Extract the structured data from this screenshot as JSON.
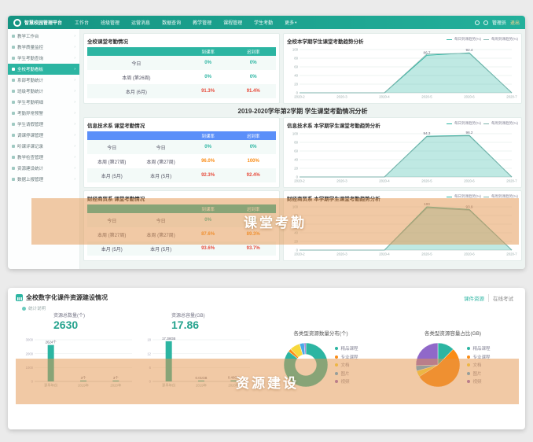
{
  "app": {
    "brand": "智慧校园管理平台",
    "nav": [
      {
        "label": "工作台"
      },
      {
        "label": "班级管理"
      },
      {
        "label": "运营消息"
      },
      {
        "label": "数据查询"
      },
      {
        "label": "教学管理"
      },
      {
        "label": "课程管理"
      },
      {
        "label": "学生考勤"
      },
      {
        "label": "更多",
        "dropdown": true
      }
    ],
    "user": {
      "name": "管理员",
      "logout": "退出"
    }
  },
  "sidebar": {
    "items": [
      {
        "label": "教学工作台",
        "active": false
      },
      {
        "label": "教学质量监控",
        "active": false
      },
      {
        "label": "学生考勤查询",
        "active": false
      },
      {
        "label": "全校考勤看板",
        "active": true
      },
      {
        "label": "系部考勤统计",
        "active": false
      },
      {
        "label": "班级考勤统计",
        "active": false
      },
      {
        "label": "学生考勤明细",
        "active": false
      },
      {
        "label": "考勤异常预警",
        "active": false
      },
      {
        "label": "学生请假管理",
        "active": false
      },
      {
        "label": "调课停课管理",
        "active": false
      },
      {
        "label": "听课评课记录",
        "active": false
      },
      {
        "label": "教学检查管理",
        "active": false
      },
      {
        "label": "资源建设统计",
        "active": false
      },
      {
        "label": "数据上报管理",
        "active": false
      }
    ]
  },
  "overlays": {
    "attendance_label": "课堂考勤",
    "resources_label": "资源建设"
  },
  "attendance": {
    "semester_title": "2019-2020学年第2学期 学生课堂考勤情况分析",
    "school_table": {
      "title": "全校课堂考勤情况",
      "header": [
        "",
        "到课率",
        "迟到率"
      ],
      "header_color": "#2cb5a2",
      "rows": [
        {
          "cells": [
            "今日",
            "0%",
            "0%"
          ],
          "color": "#2cb5a2"
        },
        {
          "cells": [
            "本周 (第26周)",
            "0%",
            "0%"
          ],
          "color": "#2cb5a2"
        },
        {
          "cells": [
            "本月 (6月)",
            "91.3%",
            "91.4%"
          ],
          "color": "#e74c3c"
        }
      ]
    },
    "school_chart": {
      "type": "line",
      "title": "全校本学期学生课堂考勤趋势分析",
      "legend": [
        "每日到课趋势(%)",
        "每周到课趋势(%)"
      ],
      "x": [
        "2020-2",
        "2020-3",
        "2020-4",
        "2020-5",
        "2020-6",
        "2020-7"
      ],
      "ylim": [
        0,
        100
      ],
      "yticks": [
        0,
        20,
        40,
        60,
        80,
        100
      ],
      "series": [
        {
          "name": "每日到课趋势(%)",
          "color": "#2cb5a2",
          "fill": true,
          "values": [
            0,
            0,
            0,
            86.7,
            92.4,
            0
          ]
        },
        {
          "name": "每周到课趋势(%)",
          "color": "#7fb3ac",
          "fill": false,
          "values": [
            0,
            0,
            0,
            89.5,
            91.2,
            0
          ]
        }
      ],
      "labels": [
        {
          "i": 3,
          "v": 86.7,
          "text": "86.7"
        },
        {
          "i": 4,
          "v": 92.4,
          "text": "92.4"
        }
      ]
    },
    "dept_tables": [
      {
        "title": "信息技术系 课堂考勤情况",
        "header": [
          "",
          "",
          "到课率",
          "迟到率"
        ],
        "header_color": "#5b8ff9",
        "rows": [
          {
            "cells": [
              "今日",
              "今日",
              "0%",
              "0%"
            ],
            "color": "#2cb5a2"
          },
          {
            "cells": [
              "本周 (第27周)",
              "本周 (第27周)",
              "96.0%",
              "100%"
            ],
            "color": "#fa8c16"
          },
          {
            "cells": [
              "本月 (5月)",
              "本月 (5月)",
              "92.3%",
              "92.4%"
            ],
            "color": "#e74c3c"
          }
        ]
      },
      {
        "title": "财经商贸系 课堂考勤情况",
        "header": [
          "",
          "",
          "到课率",
          "迟到率"
        ],
        "header_color": "#2cb5a2",
        "rows": [
          {
            "cells": [
              "今日",
              "今日",
              "0%",
              "0%"
            ],
            "color": "#2cb5a2"
          },
          {
            "cells": [
              "本周 (第27周)",
              "本周 (第27周)",
              "87.6%",
              "89.3%"
            ],
            "color": "#fa8c16"
          },
          {
            "cells": [
              "本月 (5月)",
              "本月 (5月)",
              "93.6%",
              "93.7%"
            ],
            "color": "#e74c3c"
          }
        ]
      }
    ],
    "dept_charts": [
      {
        "type": "line",
        "title": "信息技术系 本学期学生课堂考勤趋势分析",
        "legend": [
          "每日到课趋势(%)",
          "每周到课趋势(%)"
        ],
        "x": [
          "2020-2",
          "2020-3",
          "2020-4",
          "2020-5",
          "2020-6",
          "2020-7"
        ],
        "ylim": [
          0,
          100
        ],
        "yticks": [
          0,
          20,
          40,
          60,
          80,
          100
        ],
        "series": [
          {
            "name": "每日到课趋势(%)",
            "color": "#2cb5a2",
            "fill": true,
            "values": [
              0,
              0,
              0,
              94.3,
              96.2,
              0
            ]
          },
          {
            "name": "每周到课趋势(%)",
            "color": "#7fb3ac",
            "fill": false,
            "values": [
              0,
              0,
              0,
              93.0,
              95.1,
              0
            ]
          }
        ],
        "labels": [
          {
            "i": 3,
            "v": 94.3,
            "text": "94.3"
          },
          {
            "i": 4,
            "v": 96.2,
            "text": "96.2"
          }
        ]
      },
      {
        "type": "line",
        "title": "财经商贸系 本学期学生课堂考勤趋势分析",
        "legend": [
          "每日到课趋势(%)",
          "每周到课趋势(%)"
        ],
        "x": [
          "2020-2",
          "2020-3",
          "2020-4",
          "2020-5",
          "2020-6",
          "2020-7"
        ],
        "ylim": [
          0,
          100
        ],
        "yticks": [
          0,
          20,
          40,
          60,
          80,
          100
        ],
        "series": [
          {
            "name": "每日到课趋势(%)",
            "color": "#2cb5a2",
            "fill": true,
            "values": [
              0,
              0,
              0,
              100,
              93.9,
              0
            ]
          },
          {
            "name": "每周到课趋势(%)",
            "color": "#7fb3ac",
            "fill": false,
            "values": [
              0,
              0,
              0,
              97.2,
              92.5,
              0
            ]
          }
        ],
        "labels": [
          {
            "i": 3,
            "v": 100,
            "text": "100"
          },
          {
            "i": 4,
            "v": 93.9,
            "text": "93.9"
          }
        ]
      }
    ]
  },
  "resources": {
    "title": "全校数字化课件资源建设情况",
    "tabs": [
      {
        "label": "课件资源",
        "active": true
      },
      {
        "label": "在线考试",
        "active": false
      }
    ],
    "note": "统计说明",
    "stats": [
      {
        "label": "资源总数量(个)",
        "value": "2630"
      },
      {
        "label": "资源总容量(GB)",
        "value": "17.86"
      }
    ],
    "count_bar": {
      "type": "bar",
      "categories": [
        "更早年份",
        "2019年",
        "2020年"
      ],
      "values": [
        2624,
        3,
        3
      ],
      "bar_labels": [
        "2624个",
        "3个",
        "3个"
      ],
      "ylim": [
        0,
        3000
      ],
      "yticks": [
        0,
        1000,
        2000,
        3000
      ],
      "color": "#2cb5a2"
    },
    "size_bar": {
      "type": "bar",
      "categories": [
        "更早年份",
        "2019年",
        "2020年"
      ],
      "values": [
        17.38,
        0.01,
        0.46
      ],
      "bar_labels": [
        "17.38GB",
        "0.01GB",
        "0.46GB"
      ],
      "ylim": [
        0,
        18
      ],
      "yticks": [
        0,
        6,
        12,
        18
      ],
      "color": "#2cb5a2"
    },
    "count_pie": {
      "type": "pie",
      "donut": true,
      "title": "各类型资源数量分布(个)",
      "labels": [
        "精品课程",
        "专业课程",
        "文档",
        "图片",
        "视频"
      ],
      "values": [
        2250,
        60,
        200,
        90,
        30
      ],
      "colors": [
        "#2cb5a2",
        "#fa8c16",
        "#f7d83c",
        "#4aa9e9",
        "#9068c9"
      ]
    },
    "size_pie": {
      "type": "pie",
      "donut": false,
      "title": "各类型资源容量占比(GB)",
      "labels": [
        "精品课程",
        "专业课程",
        "文档",
        "图片",
        "视频"
      ],
      "values": [
        2.2,
        9.6,
        0.8,
        0.7,
        4.56
      ],
      "colors": [
        "#2cb5a2",
        "#fa8c16",
        "#f7d83c",
        "#4aa9e9",
        "#9068c9"
      ]
    }
  }
}
